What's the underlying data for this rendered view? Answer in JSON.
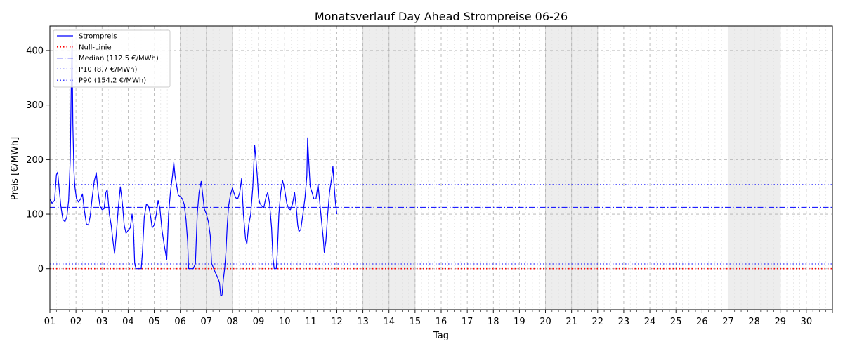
{
  "chart_data": {
    "type": "line",
    "title": "Monatsverlauf Day Ahead Strompreise 06-26",
    "xlabel": "Tag",
    "ylabel": "Preis [€/MWh]",
    "xlim": [
      1,
      31
    ],
    "ylim": [
      -75,
      445
    ],
    "yticks": [
      0,
      100,
      200,
      300,
      400
    ],
    "x_tick_labels": [
      "01",
      "02",
      "03",
      "04",
      "05",
      "06",
      "07",
      "08",
      "09",
      "10",
      "11",
      "12",
      "13",
      "14",
      "15",
      "16",
      "17",
      "18",
      "19",
      "20",
      "21",
      "22",
      "23",
      "24",
      "25",
      "26",
      "27",
      "28",
      "29",
      "30"
    ],
    "weekend_days": [
      [
        6,
        8
      ],
      [
        13,
        15
      ],
      [
        20,
        22
      ],
      [
        27,
        29
      ]
    ],
    "legend_position": "upper-left",
    "grid": true,
    "series": [
      {
        "name": "Strompreis",
        "color": "#0000ff",
        "style": "solid",
        "points": [
          [
            1.0,
            128
          ],
          [
            1.08,
            120
          ],
          [
            1.18,
            125
          ],
          [
            1.25,
            172
          ],
          [
            1.3,
            177
          ],
          [
            1.35,
            150
          ],
          [
            1.42,
            115
          ],
          [
            1.5,
            90
          ],
          [
            1.58,
            86
          ],
          [
            1.65,
            95
          ],
          [
            1.72,
            125
          ],
          [
            1.78,
            200
          ],
          [
            1.82,
            330
          ],
          [
            1.85,
            420
          ],
          [
            1.88,
            265
          ],
          [
            1.92,
            180
          ],
          [
            1.96,
            150
          ],
          [
            2.02,
            128
          ],
          [
            2.1,
            122
          ],
          [
            2.18,
            128
          ],
          [
            2.25,
            137
          ],
          [
            2.32,
            108
          ],
          [
            2.4,
            82
          ],
          [
            2.48,
            80
          ],
          [
            2.55,
            98
          ],
          [
            2.62,
            130
          ],
          [
            2.7,
            160
          ],
          [
            2.78,
            176
          ],
          [
            2.85,
            140
          ],
          [
            2.92,
            115
          ],
          [
            3.0,
            108
          ],
          [
            3.08,
            110
          ],
          [
            3.15,
            140
          ],
          [
            3.2,
            145
          ],
          [
            3.28,
            100
          ],
          [
            3.35,
            80
          ],
          [
            3.42,
            50
          ],
          [
            3.48,
            28
          ],
          [
            3.55,
            65
          ],
          [
            3.62,
            110
          ],
          [
            3.7,
            150
          ],
          [
            3.78,
            120
          ],
          [
            3.85,
            80
          ],
          [
            3.92,
            65
          ],
          [
            4.0,
            70
          ],
          [
            4.08,
            75
          ],
          [
            4.15,
            100
          ],
          [
            4.2,
            80
          ],
          [
            4.25,
            10
          ],
          [
            4.3,
            0
          ],
          [
            4.4,
            0
          ],
          [
            4.5,
            0
          ],
          [
            4.55,
            30
          ],
          [
            4.62,
            95
          ],
          [
            4.7,
            118
          ],
          [
            4.78,
            115
          ],
          [
            4.85,
            100
          ],
          [
            4.92,
            75
          ],
          [
            5.0,
            80
          ],
          [
            5.08,
            100
          ],
          [
            5.15,
            125
          ],
          [
            5.22,
            110
          ],
          [
            5.3,
            70
          ],
          [
            5.38,
            45
          ],
          [
            5.45,
            25
          ],
          [
            5.48,
            17
          ],
          [
            5.55,
            100
          ],
          [
            5.62,
            140
          ],
          [
            5.7,
            170
          ],
          [
            5.75,
            195
          ],
          [
            5.8,
            170
          ],
          [
            5.85,
            155
          ],
          [
            5.92,
            135
          ],
          [
            6.0,
            132
          ],
          [
            6.08,
            128
          ],
          [
            6.15,
            118
          ],
          [
            6.22,
            90
          ],
          [
            6.28,
            50
          ],
          [
            6.32,
            0
          ],
          [
            6.4,
            0
          ],
          [
            6.5,
            0
          ],
          [
            6.58,
            10
          ],
          [
            6.65,
            100
          ],
          [
            6.72,
            140
          ],
          [
            6.8,
            160
          ],
          [
            6.85,
            140
          ],
          [
            6.92,
            110
          ],
          [
            7.0,
            100
          ],
          [
            7.08,
            85
          ],
          [
            7.15,
            60
          ],
          [
            7.2,
            10
          ],
          [
            7.28,
            0
          ],
          [
            7.35,
            -8
          ],
          [
            7.42,
            -15
          ],
          [
            7.5,
            -25
          ],
          [
            7.55,
            -50
          ],
          [
            7.6,
            -48
          ],
          [
            7.65,
            -20
          ],
          [
            7.7,
            0
          ],
          [
            7.75,
            30
          ],
          [
            7.8,
            80
          ],
          [
            7.85,
            115
          ],
          [
            7.92,
            135
          ],
          [
            8.0,
            148
          ],
          [
            8.05,
            140
          ],
          [
            8.12,
            130
          ],
          [
            8.2,
            128
          ],
          [
            8.28,
            140
          ],
          [
            8.35,
            165
          ],
          [
            8.42,
            100
          ],
          [
            8.5,
            55
          ],
          [
            8.55,
            45
          ],
          [
            8.62,
            80
          ],
          [
            8.7,
            100
          ],
          [
            8.78,
            150
          ],
          [
            8.85,
            226
          ],
          [
            8.9,
            200
          ],
          [
            8.95,
            170
          ],
          [
            9.0,
            130
          ],
          [
            9.05,
            120
          ],
          [
            9.12,
            115
          ],
          [
            9.2,
            112
          ],
          [
            9.28,
            130
          ],
          [
            9.35,
            140
          ],
          [
            9.42,
            120
          ],
          [
            9.5,
            75
          ],
          [
            9.55,
            20
          ],
          [
            9.6,
            0
          ],
          [
            9.68,
            0
          ],
          [
            9.72,
            30
          ],
          [
            9.78,
            100
          ],
          [
            9.85,
            140
          ],
          [
            9.92,
            162
          ],
          [
            10.0,
            145
          ],
          [
            10.08,
            120
          ],
          [
            10.15,
            110
          ],
          [
            10.22,
            108
          ],
          [
            10.3,
            118
          ],
          [
            10.38,
            140
          ],
          [
            10.45,
            110
          ],
          [
            10.5,
            80
          ],
          [
            10.55,
            68
          ],
          [
            10.62,
            72
          ],
          [
            10.7,
            100
          ],
          [
            10.78,
            130
          ],
          [
            10.85,
            170
          ],
          [
            10.88,
            240
          ],
          [
            10.92,
            200
          ],
          [
            10.98,
            150
          ],
          [
            11.05,
            140
          ],
          [
            11.12,
            128
          ],
          [
            11.2,
            128
          ],
          [
            11.28,
            155
          ],
          [
            11.35,
            120
          ],
          [
            11.42,
            85
          ],
          [
            11.48,
            55
          ],
          [
            11.52,
            30
          ],
          [
            11.58,
            50
          ],
          [
            11.65,
            100
          ],
          [
            11.72,
            140
          ],
          [
            11.8,
            165
          ],
          [
            11.85,
            188
          ],
          [
            11.9,
            150
          ],
          [
            11.95,
            120
          ],
          [
            12.0,
            100
          ]
        ]
      }
    ],
    "reference_lines": [
      {
        "name": "Null-Linie",
        "value": 0,
        "color": "#ff0000",
        "style": "dotted"
      },
      {
        "name": "Median (112.5 €/MWh)",
        "value": 112.5,
        "color": "#0000ff",
        "style": "dashdot"
      },
      {
        "name": "P10 (8.7 €/MWh)",
        "value": 8.7,
        "color": "#0000ff",
        "style": "dotted"
      },
      {
        "name": "P90 (154.2 €/MWh)",
        "value": 154.2,
        "color": "#0000ff",
        "style": "dotted"
      }
    ]
  }
}
